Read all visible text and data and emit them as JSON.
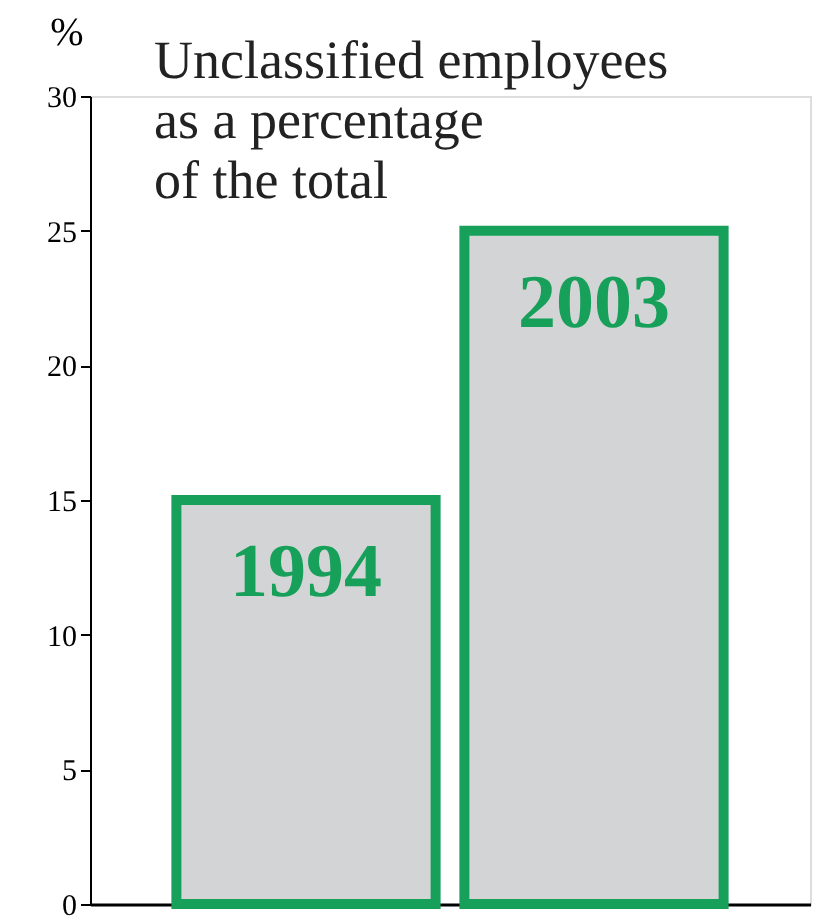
{
  "chart_data": {
    "type": "bar",
    "title": "Unclassified employees\nas a percentage\nof the total",
    "ylabel": "%",
    "categories": [
      "1994",
      "2003"
    ],
    "values": [
      15,
      25
    ],
    "color": "#d3d4d6",
    "ylim": [
      0,
      30
    ],
    "yticks": [
      0,
      5,
      10,
      15,
      20,
      25,
      30
    ],
    "grid": false
  }
}
